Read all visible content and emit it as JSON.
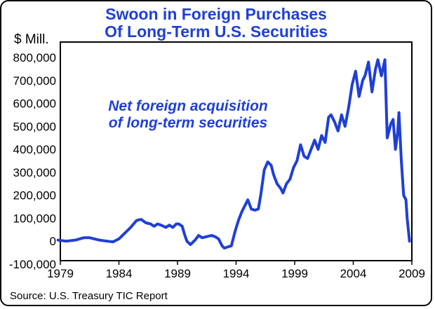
{
  "chart_data": {
    "type": "line",
    "title_lines": [
      "Swoon in Foreign Purchases",
      "Of Long-Term U.S. Securities"
    ],
    "ylabel": "$ Mill.",
    "source": "Source: U.S. Treasury TIC Report",
    "annotation_lines": [
      "Net foreign acquisition",
      "of long-term securities"
    ],
    "xlim": [
      1979,
      2009
    ],
    "ylim": [
      -100000,
      800000
    ],
    "x_ticks": [
      1979,
      1984,
      1989,
      1994,
      1999,
      2004,
      2009
    ],
    "x_tick_labels": [
      "1979",
      "1984",
      "1989",
      "1994",
      "1999",
      "2004",
      "2009"
    ],
    "y_ticks": [
      -100000,
      0,
      100000,
      200000,
      300000,
      400000,
      500000,
      600000,
      700000,
      800000
    ],
    "y_tick_labels": [
      "-100,000",
      "0",
      "100,000",
      "200,000",
      "300,000",
      "400,000",
      "500,000",
      "600,000",
      "700,000",
      "800,000"
    ],
    "grid": false,
    "line_color": "#1f3fd6",
    "series": [
      {
        "x": [
          1978.8,
          1979.5,
          1980.3,
          1981.0,
          1981.5,
          1982.3,
          1983.0,
          1983.5,
          1984.0,
          1984.5,
          1985.0,
          1985.5,
          1985.9,
          1986.3,
          1986.7,
          1987.0,
          1987.3,
          1987.6,
          1988.0,
          1988.3,
          1988.6,
          1988.9,
          1989.1,
          1989.4,
          1989.6,
          1989.8,
          1990.1,
          1990.5,
          1990.8,
          1991.1,
          1991.5,
          1991.9,
          1992.2,
          1992.5,
          1992.8,
          1993.0,
          1993.3,
          1993.6,
          1993.9,
          1994.2,
          1994.5,
          1994.8,
          1995.0,
          1995.3,
          1995.6,
          1995.9,
          1996.1,
          1996.4,
          1996.7,
          1997.0,
          1997.2,
          1997.5,
          1997.8,
          1998.0,
          1998.3,
          1998.6,
          1998.9,
          1999.2,
          1999.5,
          1999.8,
          2000.1,
          2000.4,
          2000.7,
          2001.0,
          2001.3,
          2001.6,
          2001.9,
          2002.1,
          2002.4,
          2002.7,
          2003.0,
          2003.3,
          2003.6,
          2003.9,
          2004.2,
          2004.5,
          2004.8,
          2005.0,
          2005.3,
          2005.6,
          2005.9,
          2006.1,
          2006.4,
          2006.7,
          2006.9,
          2007.2,
          2007.4,
          2007.6,
          2007.8,
          2007.9,
          2008.1,
          2008.3,
          2008.5,
          2008.6,
          2008.8
        ],
        "y": [
          5000,
          0,
          5000,
          15000,
          15000,
          5000,
          0,
          -3000,
          10000,
          35000,
          60000,
          90000,
          95000,
          80000,
          75000,
          65000,
          75000,
          70000,
          60000,
          70000,
          60000,
          75000,
          75000,
          65000,
          30000,
          0,
          -15000,
          5000,
          25000,
          15000,
          20000,
          25000,
          20000,
          10000,
          -20000,
          -30000,
          -25000,
          -20000,
          40000,
          90000,
          130000,
          160000,
          180000,
          140000,
          135000,
          140000,
          200000,
          310000,
          345000,
          330000,
          290000,
          250000,
          230000,
          210000,
          250000,
          270000,
          320000,
          350000,
          420000,
          370000,
          360000,
          400000,
          440000,
          400000,
          460000,
          430000,
          540000,
          550000,
          520000,
          480000,
          550000,
          500000,
          580000,
          680000,
          740000,
          630000,
          700000,
          720000,
          780000,
          650000,
          750000,
          790000,
          720000,
          790000,
          450000,
          510000,
          530000,
          400000,
          480000,
          560000,
          350000,
          200000,
          180000,
          100000,
          0
        ]
      }
    ]
  }
}
